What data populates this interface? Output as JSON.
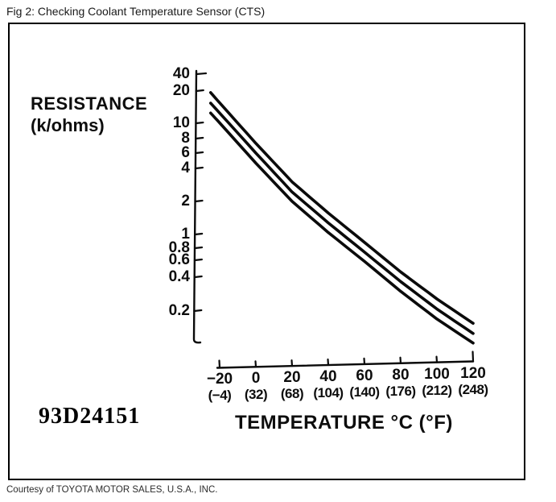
{
  "page": {
    "title": "Fig 2: Checking Coolant Temperature Sensor (CTS)",
    "footer_credit": "Courtesy of TOYOTA MOTOR SALES, U.S.A., INC."
  },
  "figure": {
    "code": "93D24151",
    "y_axis_title_line1": "RESISTANCE",
    "y_axis_title_line2": "(k/ohms)",
    "x_axis_title": "TEMPERATURE °C (°F)"
  },
  "chart_data": {
    "type": "line",
    "title": "Checking Coolant Temperature Sensor (CTS)",
    "xlabel": "TEMPERATURE °C (°F)",
    "ylabel": "RESISTANCE (k/ohms)",
    "x_scale": "linear",
    "y_scale": "log",
    "xlim": [
      -20,
      120
    ],
    "ylim": [
      0.1,
      40
    ],
    "grid": false,
    "legend": false,
    "x_ticks_c": [
      "−20",
      "0",
      "20",
      "40",
      "60",
      "80",
      "100",
      "120"
    ],
    "x_ticks_f": [
      "(−4)",
      "(32)",
      "(68)",
      "(104)",
      "(140)",
      "(176)",
      "(212)",
      "(248)"
    ],
    "y_ticks": [
      "40",
      "20",
      "10",
      "8",
      "6",
      "4",
      "2",
      "1",
      "0.8",
      "0.6",
      "0.4",
      "0.2"
    ],
    "x": [
      -25,
      -20,
      0,
      20,
      40,
      60,
      80,
      100,
      120
    ],
    "series": [
      {
        "name": "upper",
        "values": [
          20.5,
          16.5,
          7.0,
          3.1,
          1.6,
          0.86,
          0.46,
          0.26,
          0.155
        ]
      },
      {
        "name": "middle",
        "values": [
          16.4,
          13.3,
          5.7,
          2.5,
          1.3,
          0.7,
          0.375,
          0.21,
          0.125
        ]
      },
      {
        "name": "lower",
        "values": [
          13.3,
          10.8,
          4.6,
          2.05,
          1.06,
          0.575,
          0.305,
          0.17,
          0.102
        ]
      }
    ]
  }
}
